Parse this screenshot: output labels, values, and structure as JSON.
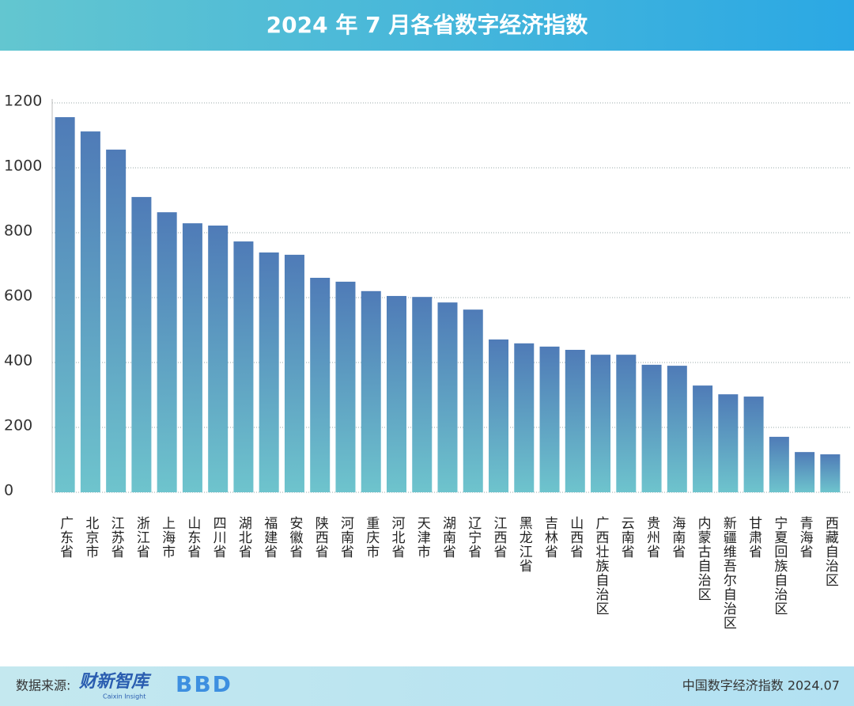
{
  "chart_data": {
    "type": "bar",
    "title": "2024 年 7 月各省数字经济指数",
    "categories": [
      "广东省",
      "北京市",
      "江苏省",
      "浙江省",
      "上海市",
      "山东省",
      "四川省",
      "湖北省",
      "福建省",
      "安徽省",
      "陕西省",
      "河南省",
      "重庆市",
      "河北省",
      "天津市",
      "湖南省",
      "辽宁省",
      "江西省",
      "黑龙江省",
      "吉林省",
      "山西省",
      "广西壮族自治区",
      "云南省",
      "贵州省",
      "海南省",
      "内蒙古自治区",
      "新疆维吾尔自治区",
      "甘肃省",
      "宁夏回族自治区",
      "青海省",
      "西藏自治区"
    ],
    "values": [
      1156,
      1112,
      1056,
      910,
      863,
      829,
      822,
      773,
      739,
      732,
      661,
      649,
      620,
      605,
      602,
      585,
      563,
      471,
      459,
      449,
      439,
      424,
      424,
      393,
      390,
      329,
      302,
      295,
      171,
      124,
      117
    ],
    "gradient": [
      "#4f7bb7",
      "#6ec4cd"
    ],
    "ylim": [
      0,
      1200
    ],
    "yticks": [
      0,
      200,
      400,
      600,
      800,
      1000,
      1200
    ],
    "grid": true,
    "source_label": "数据来源:",
    "source_logos": [
      "财新智库",
      "Caixin Insight",
      "BBD"
    ],
    "footer_note": "中国数字经济指数 2024.07"
  }
}
